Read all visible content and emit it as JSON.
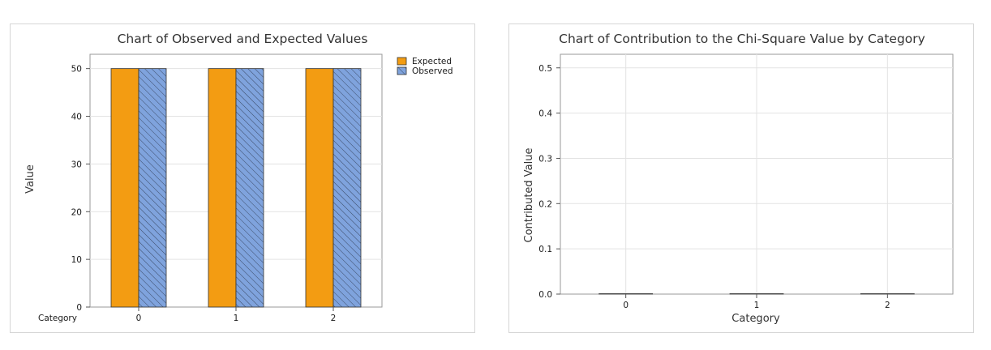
{
  "chart_data": [
    {
      "type": "bar",
      "title": "Chart of Observed and Expected Values",
      "xlabel": "Category",
      "ylabel": "Value",
      "categories": [
        "0",
        "1",
        "2"
      ],
      "series": [
        {
          "name": "Expected",
          "values": [
            50,
            50,
            50
          ],
          "color": "#f39c12",
          "pattern": "solid"
        },
        {
          "name": "Observed",
          "values": [
            50,
            50,
            50
          ],
          "color": "#7fa3dd",
          "pattern": "hatched"
        }
      ],
      "ylim": [
        0,
        53
      ],
      "yticks": [
        "0",
        "10",
        "20",
        "30",
        "40",
        "50"
      ],
      "legend": "top-right",
      "grid": true
    },
    {
      "type": "bar",
      "title": "Chart of Contribution to the Chi-Square Value by Category",
      "xlabel": "Category",
      "ylabel": "Contributed Value",
      "categories": [
        "0",
        "1",
        "2"
      ],
      "values": [
        0,
        0,
        0
      ],
      "ylim": [
        0,
        0.53
      ],
      "yticks": [
        "0.0",
        "0.1",
        "0.2",
        "0.3",
        "0.4",
        "0.5"
      ],
      "grid": true
    }
  ]
}
